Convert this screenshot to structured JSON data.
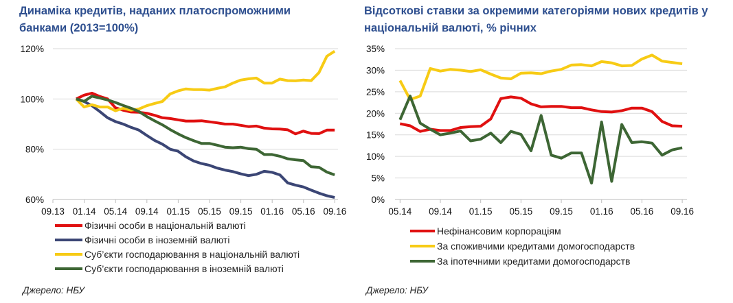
{
  "source_left": "Джерело: НБУ",
  "source_right": "Джерело: НБУ",
  "chart_data": [
    {
      "type": "line",
      "title": "Динаміка кредитів, наданих платоспроможними банками (2013=100%)",
      "xlabel": "",
      "ylabel": "",
      "x_ticks": [
        "09.13",
        "01.14",
        "05.14",
        "09.14",
        "01.15",
        "05.15",
        "09.15",
        "01.16",
        "05.16",
        "09.16"
      ],
      "y_ticks": [
        "60%",
        "80%",
        "100%",
        "120%"
      ],
      "ylim": [
        60,
        120
      ],
      "x_start": "12.13",
      "x_end": "09.16",
      "frequency": "monthly",
      "grid": true,
      "legend_position": "bottom",
      "series": [
        {
          "name": "Фізичні особи в національній валюті",
          "color": "#e01010",
          "values": [
            100,
            101.5,
            102.3,
            101,
            100,
            96.5,
            95.5,
            94.8,
            94.7,
            94.3,
            93.5,
            92.5,
            92.2,
            91.7,
            91.2,
            91.2,
            91.3,
            90.9,
            90.5,
            90,
            90,
            89.5,
            89,
            89.2,
            88.4,
            88.1,
            88,
            87.7,
            86.1,
            87.2,
            86.3,
            86.2,
            87.6,
            87.6
          ]
        },
        {
          "name": "Фізичні особи в іноземній валюті",
          "color": "#3b4675",
          "values": [
            100,
            99,
            97.3,
            95,
            92.5,
            91,
            90,
            88.7,
            87.6,
            85.5,
            83.5,
            82,
            80,
            79.2,
            77,
            75.3,
            74.3,
            73.6,
            72.5,
            71.7,
            71.1,
            70.2,
            69.5,
            70,
            71.2,
            70.8,
            69.8,
            66.6,
            65.7,
            65,
            63.7,
            62.5,
            61.5,
            60.8
          ]
        },
        {
          "name": "Суб’єкти господарювання в національній валюті",
          "color": "#f7cb15",
          "values": [
            100,
            96.8,
            97.7,
            96.8,
            96.8,
            95.3,
            96.3,
            95.5,
            96,
            97.3,
            98.2,
            99,
            102,
            103.2,
            104,
            103.7,
            103.7,
            103.5,
            104.2,
            104.8,
            106.3,
            107.5,
            108,
            108.3,
            106.3,
            106.3,
            107.9,
            107.3,
            107.2,
            107.5,
            107.3,
            110.5,
            117,
            119
          ]
        },
        {
          "name": "Суб’єкти господарювання в іноземній валюті",
          "color": "#3d6634",
          "values": [
            100,
            99,
            101.1,
            100.4,
            99.6,
            98.6,
            97.4,
            96.3,
            95,
            93,
            91.3,
            89.7,
            87.8,
            86.1,
            84.6,
            83.4,
            82.3,
            82.3,
            81.6,
            80.8,
            80.6,
            80.8,
            80.2,
            80,
            77.9,
            77.9,
            77.2,
            76.2,
            75.8,
            75.5,
            73,
            72.8,
            70.9,
            69.8
          ]
        }
      ]
    },
    {
      "type": "line",
      "title": "Відсоткові ставки за окремими категоріями нових кредитів у національній валюті, % річних",
      "xlabel": "",
      "ylabel": "",
      "x_ticks": [
        "05.14",
        "09.14",
        "01.15",
        "05.15",
        "09.15",
        "01.16",
        "05.16",
        "09.16"
      ],
      "y_ticks": [
        "0%",
        "5%",
        "10%",
        "15%",
        "20%",
        "25%",
        "30%",
        "35%"
      ],
      "ylim": [
        0,
        35
      ],
      "x_start": "05.14",
      "x_end": "09.16",
      "frequency": "monthly",
      "grid": true,
      "legend_position": "bottom",
      "series": [
        {
          "name": "Нефінансовим корпораціям",
          "color": "#e01010",
          "values": [
            17.6,
            17.1,
            15.8,
            16.3,
            16,
            16,
            16.7,
            16.9,
            17,
            18.7,
            23.4,
            23.8,
            23.5,
            22.2,
            21.5,
            21.6,
            21.6,
            21.3,
            21.3,
            20.8,
            20.4,
            20.3,
            20.6,
            21.2,
            21.2,
            20.4,
            18.1,
            17.1,
            17
          ]
        },
        {
          "name": "За споживчими кредитами домогосподарств",
          "color": "#f7cb15",
          "values": [
            27.6,
            23.2,
            24,
            30.4,
            29.8,
            30.2,
            30,
            29.7,
            30.1,
            29.1,
            28.2,
            28,
            29.3,
            29.4,
            29.2,
            29.8,
            30.2,
            31.2,
            31.3,
            31,
            32,
            31.7,
            31,
            31.1,
            32.6,
            33.5,
            32.1,
            31.8,
            31.5
          ]
        },
        {
          "name": "За іпотечними кредитами домогосподарств",
          "color": "#3d6634",
          "values": [
            18.5,
            24,
            17.7,
            16.3,
            15,
            15.4,
            15.9,
            13.6,
            14,
            15.4,
            13.2,
            15.8,
            15.1,
            11.3,
            19.5,
            10.3,
            9.6,
            10.8,
            10.8,
            3.8,
            18,
            4.2,
            17.4,
            13.2,
            13.4,
            13.1,
            10.3,
            11.5,
            12
          ]
        }
      ]
    }
  ]
}
